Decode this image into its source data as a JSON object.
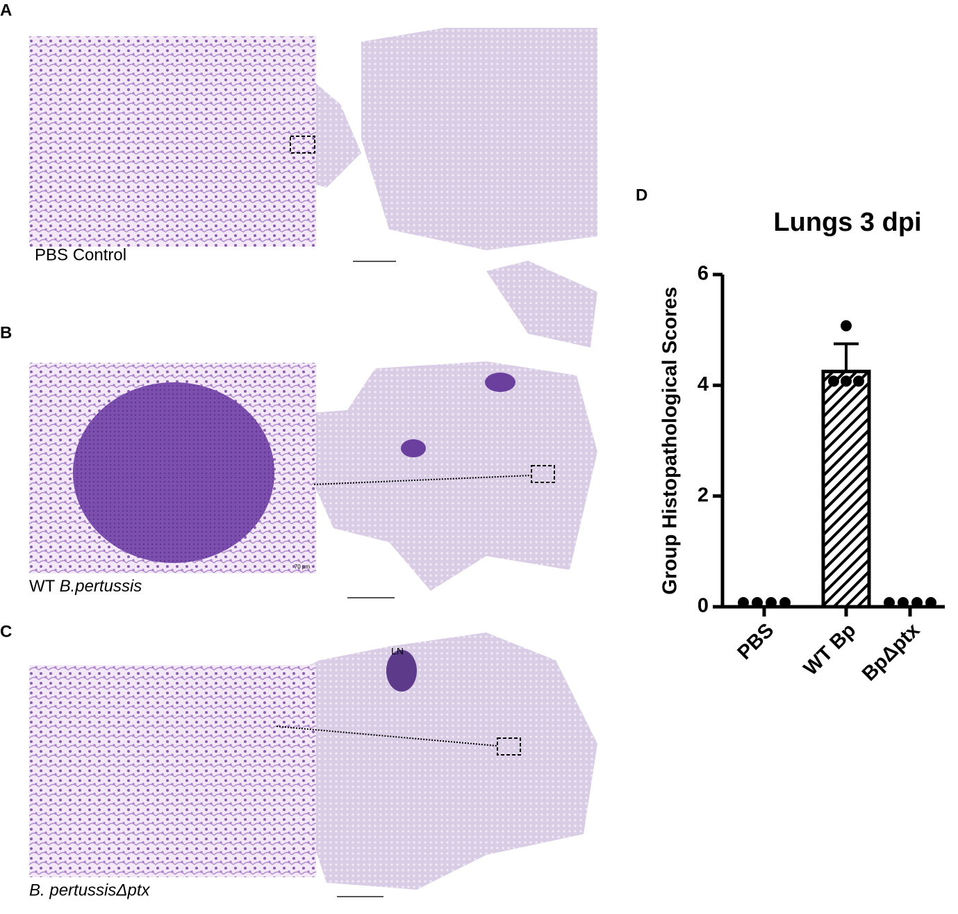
{
  "panels": {
    "labels": [
      "A",
      "B",
      "C",
      "D"
    ],
    "captions": {
      "a": "PBS Control",
      "b_prefix": "WT",
      "b_italic": "B.pertussis",
      "c": "B. pertussisΔptx"
    },
    "lymph_node": "LN",
    "scale_label": "70 μm"
  },
  "chart_data": {
    "type": "bar",
    "title": "Lungs 3 dpi",
    "y_label": "Group Histopathological Scores",
    "categories": [
      "PBS",
      "WT Bp",
      "BpΔptx"
    ],
    "values": [
      0,
      4.25,
      0
    ],
    "errors": [
      0,
      0.5,
      0
    ],
    "points": [
      [
        0,
        0,
        0,
        0
      ],
      [
        5,
        4,
        4,
        4
      ],
      [
        0,
        0,
        0,
        0
      ]
    ],
    "color": "#000000",
    "hatch": true,
    "ylim": [
      0,
      6
    ],
    "yticks": [
      0,
      2,
      4,
      6
    ]
  }
}
